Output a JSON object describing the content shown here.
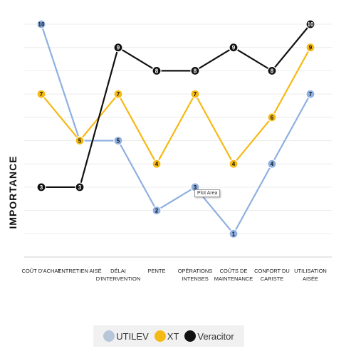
{
  "chart_data": {
    "type": "line",
    "ylabel": "IMPORTANCE",
    "ylim": [
      0,
      11
    ],
    "grid": true,
    "categories": [
      [
        "COÛT D'ACHAT"
      ],
      [
        "ENTRETIEN AISÉ"
      ],
      [
        "DÉLAI",
        "D'INTERVENTION"
      ],
      [
        "PENTE"
      ],
      [
        "OPÉRATIONS",
        "INTENSES"
      ],
      [
        "COÛTS DE",
        "MAINTENANCE"
      ],
      [
        "CONFORT DU",
        "CARISTE"
      ],
      [
        "UTILISATION",
        "AISÉE"
      ]
    ],
    "series": [
      {
        "name": "UTILEV",
        "color": "#8eb0e0",
        "legend_color": "#b8c6dc",
        "values": [
          10,
          5,
          5,
          2,
          3,
          1,
          4,
          7
        ]
      },
      {
        "name": "XT",
        "color": "#f5b914",
        "legend_color": "#f5b914",
        "values": [
          7,
          5,
          7,
          4,
          7,
          4,
          6,
          9
        ]
      },
      {
        "name": "Veracitor",
        "color": "#111111",
        "legend_color": "#111111",
        "values": [
          3,
          3,
          9,
          8,
          8,
          9,
          8,
          10
        ]
      }
    ],
    "legend_position": "bottom",
    "tooltip": "Plot Area"
  }
}
